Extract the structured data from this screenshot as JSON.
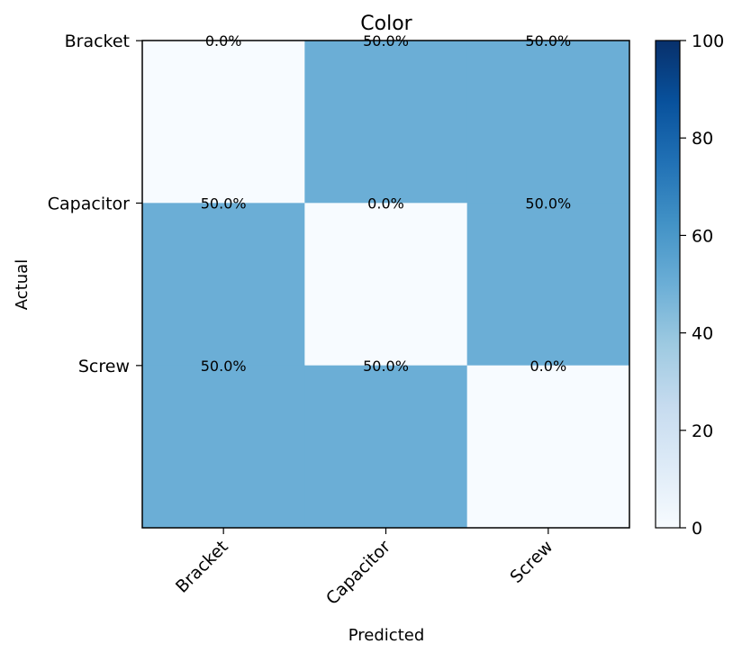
{
  "chart_data": {
    "type": "heatmap",
    "title": "Color",
    "xlabel": "Predicted",
    "ylabel": "Actual",
    "x_categories": [
      "Bracket",
      "Capacitor",
      "Screw"
    ],
    "y_categories": [
      "Bracket",
      "Capacitor",
      "Screw"
    ],
    "values": [
      [
        0.0,
        50.0,
        50.0
      ],
      [
        50.0,
        0.0,
        50.0
      ],
      [
        50.0,
        50.0,
        0.0
      ]
    ],
    "cell_labels": [
      [
        "0.0%",
        "50.0%",
        "50.0%"
      ],
      [
        "50.0%",
        "0.0%",
        "50.0%"
      ],
      [
        "50.0%",
        "50.0%",
        "0.0%"
      ]
    ],
    "colormap": "Blues",
    "colorbar": {
      "range": [
        0,
        100
      ],
      "ticks": [
        0,
        20,
        40,
        60,
        80,
        100
      ],
      "tick_labels": [
        "0",
        "20",
        "40",
        "60",
        "80",
        "100"
      ]
    },
    "colors": {
      "low": "#f7fbff",
      "high": "#08306b"
    }
  }
}
